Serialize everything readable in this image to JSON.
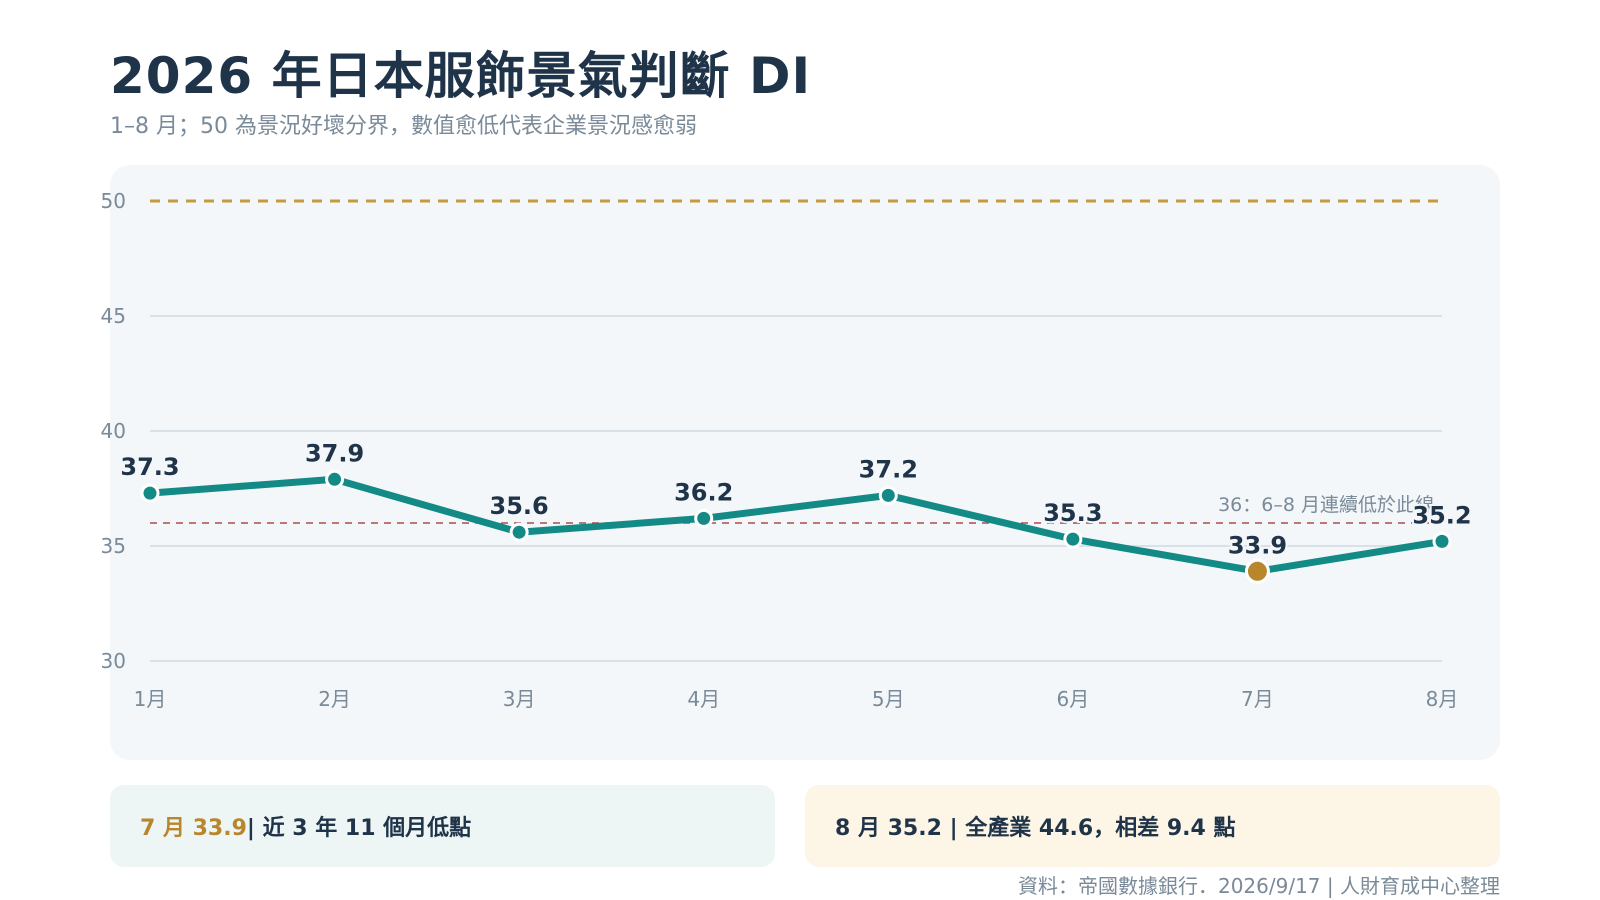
{
  "header": {
    "title": "2026 年日本服飾景氣判斷 DI",
    "subtitle": "1–8 月；50 為景況好壞分界，數值愈低代表企業景況感愈弱"
  },
  "chart_data": {
    "type": "line",
    "categories": [
      "1月",
      "2月",
      "3月",
      "4月",
      "5月",
      "6月",
      "7月",
      "8月"
    ],
    "series": [
      {
        "values": [
          37.3,
          37.9,
          35.6,
          36.2,
          37.2,
          35.3,
          33.9,
          35.2
        ]
      }
    ],
    "ylim": [
      30,
      50
    ],
    "yticks": [
      30,
      35,
      40,
      45,
      50
    ],
    "grid": true,
    "highlight_category": "7月",
    "reference_lines": [
      {
        "value": 50,
        "style": "dashed",
        "color": "#c49a3c"
      },
      {
        "value": 36,
        "style": "dashed",
        "color": "#b04a4a",
        "label": "36：6–8 月連續低於此線"
      }
    ],
    "colors": {
      "line": "#138a85",
      "highlight": "#b8862b",
      "grid": "#d9e1e8"
    }
  },
  "cards": {
    "left": {
      "highlight": "7 月 33.9",
      "text": " | 近 3 年 11 個月低點"
    },
    "right": {
      "text": "8 月 35.2 | 全產業 44.6，相差 9.4 點"
    }
  },
  "footer": {
    "source": "資料：帝國數據銀行．2026/9/17 | 人財育成中心整理"
  }
}
